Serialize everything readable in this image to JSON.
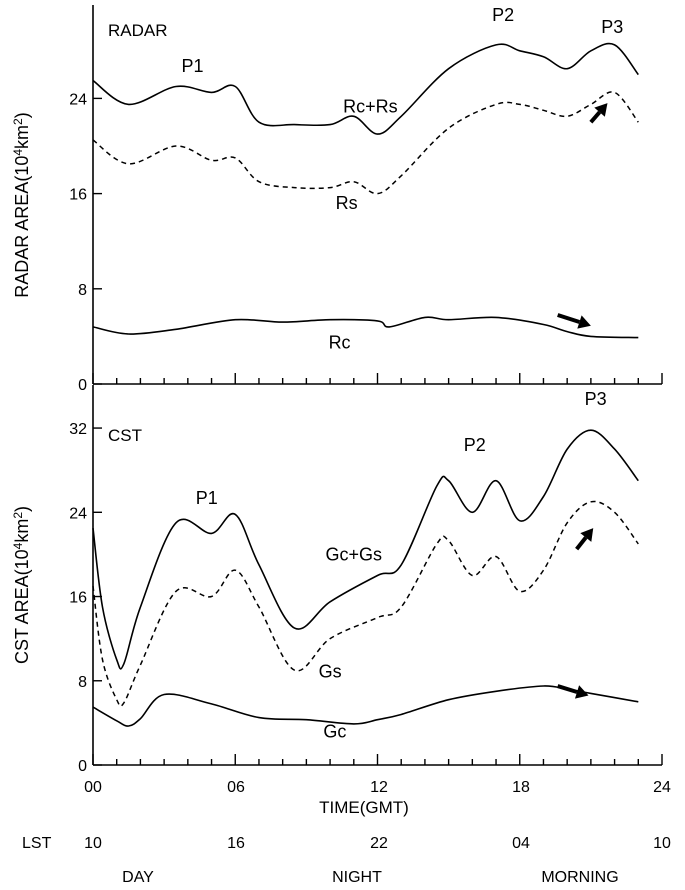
{
  "chart_data": [
    {
      "type": "line",
      "panel_label": "RADAR",
      "ylabel_text": "RADAR AREA(10",
      "ylabel_sup": "4",
      "ylabel_unit": "km",
      "ylabel_sup2": "2",
      "ylabel_close": ")",
      "ylim": [
        0,
        30
      ],
      "yticks": [
        "0",
        "8",
        "16",
        "24"
      ],
      "ytick_values": [
        0,
        8,
        16,
        24
      ],
      "series": [
        {
          "name": "Rc+Rs",
          "style": "solid",
          "x": [
            0,
            1.5,
            3.5,
            5,
            6,
            7,
            8.5,
            10,
            11,
            12,
            13,
            15,
            17,
            18,
            19,
            20,
            21,
            22,
            23
          ],
          "y": [
            25.5,
            23.5,
            25,
            24.5,
            25,
            22,
            21.8,
            21.8,
            22.5,
            21,
            22.5,
            26.5,
            28.5,
            28,
            27.5,
            26.5,
            28,
            28.5,
            26
          ]
        },
        {
          "name": "Rs",
          "style": "dashed",
          "x": [
            0,
            1.5,
            3.5,
            5,
            6,
            7,
            8.5,
            10,
            11,
            12,
            13,
            15,
            17,
            18,
            19,
            20,
            21,
            22,
            23
          ],
          "y": [
            20.5,
            18.5,
            20,
            18.8,
            19,
            17,
            16.5,
            16.5,
            17,
            16,
            17.5,
            21.5,
            23.5,
            23.5,
            23,
            22.5,
            23.5,
            24.5,
            22
          ]
        },
        {
          "name": "Rc",
          "style": "solid",
          "x": [
            0,
            1.5,
            3.5,
            6,
            8,
            10,
            12,
            12.5,
            14,
            15,
            17,
            19,
            20,
            21,
            23
          ],
          "y": [
            4.8,
            4.2,
            4.6,
            5.4,
            5.2,
            5.4,
            5.3,
            4.8,
            5.6,
            5.4,
            5.6,
            5.0,
            4.4,
            4.0,
            3.9
          ]
        }
      ],
      "annotations": [
        {
          "text": "P1",
          "x": 4.2,
          "y": 26.2
        },
        {
          "text": "P2",
          "x": 17.3,
          "y": 30.5
        },
        {
          "text": "P3",
          "x": 21.9,
          "y": 29.5
        },
        {
          "text": "Rc+Rs",
          "x": 11.7,
          "y": 22.8
        },
        {
          "text": "Rs",
          "x": 10.7,
          "y": 14.7
        },
        {
          "text": "Rc",
          "x": 10.4,
          "y": 3.0
        }
      ],
      "arrows": [
        {
          "from": [
            21.0,
            22.0
          ],
          "to": [
            21.7,
            23.6
          ]
        },
        {
          "from": [
            19.6,
            5.8
          ],
          "to": [
            21.0,
            4.9
          ]
        }
      ]
    },
    {
      "type": "line",
      "panel_label": "CST",
      "ylabel_text": "CST AREA(10",
      "ylabel_sup": "4",
      "ylabel_unit": "km",
      "ylabel_sup2": "2",
      "ylabel_close": ")",
      "ylim": [
        0,
        34
      ],
      "yticks": [
        "0",
        "8",
        "16",
        "24",
        "32"
      ],
      "ytick_values": [
        0,
        8,
        16,
        24,
        32
      ],
      "series": [
        {
          "name": "Gc+Gs",
          "style": "solid",
          "x": [
            0,
            0.4,
            1.0,
            1.3,
            2.0,
            3.5,
            5,
            6,
            7,
            8.5,
            10,
            12,
            13,
            14.5,
            15,
            16,
            17,
            18,
            19,
            20,
            21,
            22,
            23
          ],
          "y": [
            22.5,
            15,
            10,
            9.6,
            15,
            23,
            22,
            23.8,
            19,
            13,
            15.5,
            18,
            19,
            26.5,
            27,
            24,
            27,
            23.2,
            25.5,
            30,
            31.8,
            30,
            27
          ]
        },
        {
          "name": "Gs",
          "style": "dashed",
          "x": [
            0,
            0.4,
            1.0,
            1.3,
            2.0,
            3.5,
            5,
            6,
            7,
            8.5,
            10,
            12,
            13,
            14.5,
            15,
            16,
            17,
            18,
            19,
            20,
            21,
            22,
            23
          ],
          "y": [
            17,
            10,
            6.2,
            5.9,
            9.5,
            16.5,
            16,
            18.5,
            15,
            9,
            12,
            14,
            15,
            21,
            21.3,
            18,
            19.8,
            16.5,
            18.5,
            23,
            25,
            24,
            21
          ]
        },
        {
          "name": "Gc",
          "style": "solid",
          "x": [
            0,
            1,
            1.5,
            2,
            3,
            5,
            7,
            9,
            11,
            12,
            13,
            15,
            17,
            19,
            20,
            21,
            23
          ],
          "y": [
            5.5,
            4.2,
            3.7,
            4.4,
            6.7,
            5.8,
            4.5,
            4.3,
            3.9,
            4.3,
            4.8,
            6.2,
            7.0,
            7.5,
            7.2,
            6.8,
            6.0
          ]
        }
      ],
      "annotations": [
        {
          "text": "P1",
          "x": 4.8,
          "y": 24.8
        },
        {
          "text": "P2",
          "x": 16.1,
          "y": 29.8
        },
        {
          "text": "P3",
          "x": 21.2,
          "y": 34.2
        },
        {
          "text": "Gc+Gs",
          "x": 11.0,
          "y": 19.4
        },
        {
          "text": "Gs",
          "x": 10.0,
          "y": 8.3
        },
        {
          "text": "Gc",
          "x": 10.2,
          "y": 2.6
        }
      ],
      "arrows": [
        {
          "from": [
            20.4,
            20.5
          ],
          "to": [
            21.1,
            22.5
          ]
        },
        {
          "from": [
            19.6,
            7.5
          ],
          "to": [
            20.9,
            6.6
          ]
        }
      ]
    }
  ],
  "x_axis": {
    "xlim": [
      0,
      24
    ],
    "major_ticks": [
      0,
      6,
      12,
      18,
      24
    ],
    "major_labels": [
      "00",
      "06",
      "12",
      "18",
      "24"
    ],
    "minor_ticks": [
      1,
      2,
      3,
      4,
      5,
      7,
      8,
      9,
      10,
      11,
      13,
      14,
      15,
      16,
      17,
      19,
      20,
      21,
      22,
      23
    ],
    "label": "TIME(GMT)",
    "lst_title": "LST",
    "lst_labels": [
      "10",
      "16",
      "22",
      "04",
      "10"
    ],
    "period_labels": [
      "DAY",
      "NIGHT",
      "MORNING"
    ]
  }
}
